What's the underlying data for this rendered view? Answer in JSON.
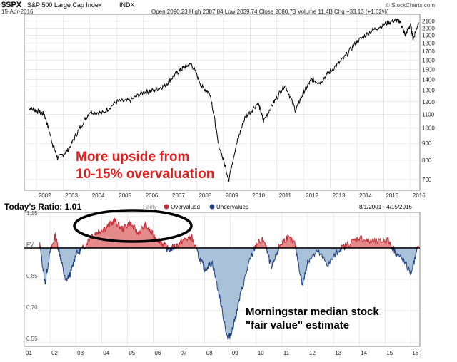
{
  "colors": {
    "over": "#c0303a",
    "under": "#1f3f7f",
    "under_fill": "#a9c1d9",
    "over_fill": "#e58a8a",
    "price_line": "#000000",
    "grid": "#dcdcdc",
    "annotation_red": "#e02020"
  },
  "top_panel": {
    "symbol": "$SPX",
    "name": "S&P 500 Large Cap Index",
    "exchange": "INDX",
    "date": "15-Apr-2016",
    "ohlc_text": "Open 2090.23  High 2087.84  Low 2039.74  Close 2080.73  Volume 11.4B  Chg +33.13 (+1.62%)",
    "source": "© StockCharts.com",
    "annotation_line1": "More upside from",
    "annotation_line2": "10-15% overvaluation"
  },
  "bottom_panel": {
    "ratio_label": "Today's Ratio: 1.01",
    "legend": [
      {
        "label": "Overvalued",
        "color": "#c0303a"
      },
      {
        "label": "Undervalued",
        "color": "#1f3f7f"
      }
    ],
    "legend_extra": "Fairly",
    "date_range": "8/1/2001 - 4/15/2016",
    "fv_label": "FV",
    "annotation_line1": "Morningstar median stock",
    "annotation_line2": "\"fair value\" estimate"
  },
  "chart_data": [
    {
      "type": "line",
      "title": "$SPX S&P 500 Large Cap Index INDX",
      "scale": "log",
      "x": [
        "2001.7",
        "2002.0",
        "2002.3",
        "2002.6",
        "2002.8",
        "2003.2",
        "2003.6",
        "2004.0",
        "2004.5",
        "2005.0",
        "2005.5",
        "2006.0",
        "2006.4",
        "2006.8",
        "2007.2",
        "2007.5",
        "2007.8",
        "2008.2",
        "2008.5",
        "2008.8",
        "2009.2",
        "2009.5",
        "2009.8",
        "2010.3",
        "2010.5",
        "2010.9",
        "2011.3",
        "2011.7",
        "2012.0",
        "2012.3",
        "2012.6",
        "2013.0",
        "2013.5",
        "2014.0",
        "2014.5",
        "2015.0",
        "2015.4",
        "2015.6",
        "2015.8",
        "2016.0",
        "2016.1",
        "2016.3"
      ],
      "values": [
        1150,
        1130,
        1100,
        900,
        810,
        860,
        990,
        1120,
        1110,
        1200,
        1210,
        1280,
        1300,
        1340,
        1450,
        1520,
        1560,
        1330,
        1270,
        900,
        700,
        900,
        1070,
        1190,
        1050,
        1200,
        1350,
        1130,
        1280,
        1400,
        1370,
        1480,
        1620,
        1820,
        1950,
        2050,
        2110,
        2100,
        1900,
        2050,
        1850,
        2080
      ],
      "ylim": [
        650,
        2200
      ],
      "y_ticks": [
        "2100",
        "2000",
        "1900",
        "1800",
        "1700",
        "1600",
        "1500",
        "1400",
        "1300",
        "1200",
        "1100",
        "1000",
        "900",
        "800",
        "700"
      ],
      "x_ticks": [
        "2002",
        "2003",
        "2004",
        "2005",
        "2006",
        "2007",
        "2008",
        "2009",
        "2010",
        "2011",
        "2012",
        "2013",
        "2014",
        "2015",
        "2016"
      ]
    },
    {
      "type": "area",
      "title": "Today's Ratio: 1.01",
      "x": [
        "2001.6",
        "2001.8",
        "2002.0",
        "2002.2",
        "2002.4",
        "2002.6",
        "2002.8",
        "2003.0",
        "2003.3",
        "2003.6",
        "2003.9",
        "2004.2",
        "2004.5",
        "2004.8",
        "2005.1",
        "2005.4",
        "2005.7",
        "2006.0",
        "2006.3",
        "2006.6",
        "2006.9",
        "2007.2",
        "2007.5",
        "2007.8",
        "2008.0",
        "2008.3",
        "2008.6",
        "2008.9",
        "2009.1",
        "2009.4",
        "2009.7",
        "2010.0",
        "2010.3",
        "2010.6",
        "2010.9",
        "2011.2",
        "2011.5",
        "2011.8",
        "2012.0",
        "2012.4",
        "2012.8",
        "2013.2",
        "2013.6",
        "2014.0",
        "2014.4",
        "2014.8",
        "2015.1",
        "2015.4",
        "2015.7",
        "2016.0",
        "2016.3"
      ],
      "values": [
        1.02,
        0.83,
        0.98,
        1.06,
        0.96,
        0.84,
        0.88,
        0.97,
        1.0,
        1.06,
        1.08,
        1.1,
        1.13,
        1.09,
        1.12,
        1.07,
        1.11,
        1.06,
        1.03,
        0.99,
        1.01,
        1.04,
        1.05,
        0.95,
        0.9,
        0.93,
        0.75,
        0.56,
        0.62,
        0.78,
        0.92,
        1.02,
        1.04,
        0.9,
        1.01,
        1.05,
        1.02,
        0.82,
        0.94,
        0.98,
        0.92,
        0.99,
        1.02,
        1.05,
        1.03,
        1.03,
        1.04,
        0.98,
        0.94,
        0.88,
        1.01
      ],
      "baseline": 1.0,
      "ylim": [
        0.53,
        1.17
      ],
      "y_ticks": [
        "1.15",
        "FV",
        "0.85",
        "0.70",
        "0.55"
      ],
      "x_ticks": [
        "01",
        "02",
        "03",
        "04",
        "05",
        "06",
        "07",
        "08",
        "09",
        "10",
        "11",
        "12",
        "13",
        "14",
        "15",
        "16"
      ]
    }
  ]
}
